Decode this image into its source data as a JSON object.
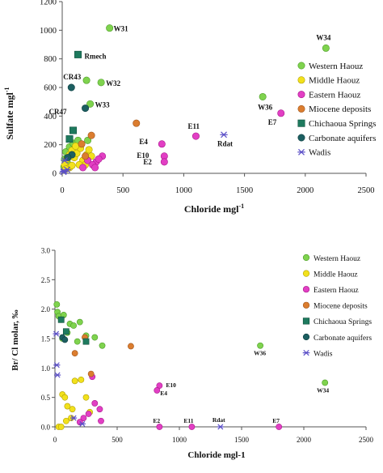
{
  "chart_data": [
    {
      "type": "scatter",
      "xlabel": "Chloride mgl",
      "xlabel_sup": "-1",
      "ylabel": "Sulfate  mgl",
      "ylabel_sup": "-1",
      "xlim": [
        0,
        2500
      ],
      "ylim": [
        0,
        1200
      ],
      "xticks": [
        0,
        500,
        1000,
        1500,
        2000,
        2500
      ],
      "yticks": [
        0,
        200,
        400,
        600,
        800,
        1000,
        1200
      ],
      "legend_position": "right",
      "series": [
        {
          "name": "Western Haouz",
          "marker": "circle",
          "color": "#7fd34e",
          "stroke": "#4a9a25",
          "points": [
            [
              390,
              1015
            ],
            [
              2170,
              875
            ],
            [
              1650,
              535
            ],
            [
              200,
              650
            ],
            [
              320,
              635
            ],
            [
              230,
              485
            ],
            [
              20,
              100
            ],
            [
              30,
              150
            ],
            [
              60,
              185
            ],
            [
              90,
              210
            ],
            [
              130,
              230
            ],
            [
              40,
              80
            ],
            [
              70,
              120
            ],
            [
              210,
              230
            ],
            [
              15,
              45
            ]
          ]
        },
        {
          "name": "Middle Haouz",
          "marker": "circle",
          "color": "#f2e11c",
          "stroke": "#b19f00",
          "points": [
            [
              20,
              60
            ],
            [
              40,
              100
            ],
            [
              60,
              130
            ],
            [
              80,
              160
            ],
            [
              100,
              110
            ],
            [
              120,
              140
            ],
            [
              150,
              175
            ],
            [
              170,
              90
            ],
            [
              190,
              60
            ],
            [
              200,
              130
            ],
            [
              220,
              165
            ],
            [
              110,
              190
            ],
            [
              140,
              60
            ],
            [
              60,
              40
            ],
            [
              240,
              120
            ],
            [
              80,
              55
            ],
            [
              30,
              30
            ]
          ]
        },
        {
          "name": "Eastern Haouz",
          "marker": "circle",
          "color": "#e23fc4",
          "stroke": "#a8168b",
          "points": [
            [
              1800,
              420
            ],
            [
              1100,
              260
            ],
            [
              820,
              205
            ],
            [
              840,
              120
            ],
            [
              840,
              80
            ],
            [
              280,
              80
            ],
            [
              330,
              120
            ],
            [
              210,
              90
            ],
            [
              250,
              60
            ],
            [
              170,
              40
            ],
            [
              270,
              40
            ],
            [
              300,
              100
            ]
          ]
        },
        {
          "name": "Miocene deposits",
          "marker": "circle",
          "color": "#db7d2f",
          "stroke": "#a0541a",
          "points": [
            [
              610,
              350
            ],
            [
              240,
              265
            ],
            [
              160,
              205
            ],
            [
              190,
              120
            ]
          ]
        },
        {
          "name": "Chichaoua Springs",
          "marker": "square",
          "color": "#1e7a5e",
          "stroke": "#0f4f3c",
          "points": [
            [
              130,
              830
            ],
            [
              90,
              300
            ],
            [
              60,
              240
            ]
          ]
        },
        {
          "name": "Carbonate aquifers",
          "marker": "circle",
          "color": "#1c5f61",
          "stroke": "#0e3d3f",
          "points": [
            [
              75,
              600
            ],
            [
              190,
              455
            ],
            [
              80,
              130
            ],
            [
              45,
              110
            ]
          ]
        },
        {
          "name": "Wadis",
          "marker": "star",
          "color": "#5b4fc7",
          "stroke": "#3a30a0",
          "points": [
            [
              1330,
              270
            ],
            [
              10,
              10
            ],
            [
              40,
              25
            ],
            [
              20,
              90
            ],
            [
              15,
              15
            ]
          ]
        }
      ],
      "annotations": [
        {
          "text": "W31",
          "x": 390,
          "y": 1015,
          "dx": 5,
          "dy": 4
        },
        {
          "text": "W34",
          "x": 2170,
          "y": 875,
          "dx": -12,
          "dy": -10
        },
        {
          "text": "Rmech",
          "x": 130,
          "y": 830,
          "dx": 8,
          "dy": 5
        },
        {
          "text": "CR43",
          "x": 75,
          "y": 600,
          "dx": -10,
          "dy": -10
        },
        {
          "text": "W32",
          "x": 320,
          "y": 635,
          "dx": 6,
          "dy": 4
        },
        {
          "text": "W36",
          "x": 1650,
          "y": 535,
          "dx": -6,
          "dy": 16
        },
        {
          "text": "W33",
          "x": 230,
          "y": 485,
          "dx": 6,
          "dy": 4
        },
        {
          "text": "E7",
          "x": 1800,
          "y": 420,
          "dx": -16,
          "dy": 14
        },
        {
          "text": "CR47",
          "x": 90,
          "y": 300,
          "dx": -30,
          "dy": -20
        },
        {
          "text": "E11",
          "x": 1100,
          "y": 260,
          "dx": -10,
          "dy": -9
        },
        {
          "text": "Rdat",
          "x": 1330,
          "y": 270,
          "dx": -8,
          "dy": 14
        },
        {
          "text": "E4",
          "x": 820,
          "y": 205,
          "dx": -28,
          "dy": 0
        },
        {
          "text": "E10",
          "x": 840,
          "y": 120,
          "dx": -34,
          "dy": 2
        },
        {
          "text": "E2",
          "x": 840,
          "y": 80,
          "dx": -26,
          "dy": 3
        }
      ]
    },
    {
      "type": "scatter",
      "xlabel": "Chloride mgl-1",
      "ylabel": "Br/ Cl molar, ‰",
      "xlim": [
        0,
        2500
      ],
      "ylim": [
        0,
        3.0
      ],
      "xticks": [
        0,
        500,
        1000,
        1500,
        2000,
        2500
      ],
      "yticks": [
        0.0,
        0.5,
        1.0,
        1.5,
        2.0,
        2.5,
        3.0
      ],
      "ytick_labels": [
        "0.0",
        "0.5",
        "1.0",
        "1.5",
        "2.0",
        "2.5",
        "3.0"
      ],
      "legend_position": "right",
      "series": [
        {
          "name": "Western Haouz",
          "marker": "circle",
          "color": "#7fd34e",
          "stroke": "#4a9a25",
          "points": [
            [
              15,
              2.08
            ],
            [
              20,
              1.95
            ],
            [
              30,
              1.88
            ],
            [
              50,
              1.82
            ],
            [
              70,
              1.9
            ],
            [
              100,
              1.6
            ],
            [
              120,
              1.75
            ],
            [
              150,
              1.72
            ],
            [
              200,
              1.78
            ],
            [
              250,
              1.55
            ],
            [
              320,
              1.52
            ],
            [
              380,
              1.38
            ],
            [
              1650,
              1.38
            ],
            [
              2170,
              0.75
            ],
            [
              180,
              1.45
            ],
            [
              60,
              1.5
            ]
          ]
        },
        {
          "name": "Middle Haouz",
          "marker": "circle",
          "color": "#f2e11c",
          "stroke": "#b19f00",
          "points": [
            [
              30,
              0.0
            ],
            [
              50,
              0.0
            ],
            [
              60,
              0.55
            ],
            [
              80,
              0.5
            ],
            [
              100,
              0.35
            ],
            [
              130,
              0.15
            ],
            [
              160,
              0.78
            ],
            [
              210,
              0.8
            ],
            [
              250,
              0.5
            ],
            [
              280,
              0.25
            ],
            [
              140,
              0.3
            ],
            [
              90,
              0.1
            ]
          ]
        },
        {
          "name": "Eastern Haouz",
          "marker": "circle",
          "color": "#e23fc4",
          "stroke": "#a8168b",
          "points": [
            [
              840,
              0.7
            ],
            [
              820,
              0.62
            ],
            [
              840,
              0.0
            ],
            [
              1100,
              0.0
            ],
            [
              1800,
              0.0
            ],
            [
              300,
              0.85
            ],
            [
              320,
              0.4
            ],
            [
              360,
              0.3
            ],
            [
              230,
              0.15
            ],
            [
              370,
              0.1
            ],
            [
              200,
              0.08
            ],
            [
              270,
              0.22
            ]
          ]
        },
        {
          "name": "Miocene deposits",
          "marker": "circle",
          "color": "#db7d2f",
          "stroke": "#a0541a",
          "points": [
            [
              610,
              1.37
            ],
            [
              240,
              1.52
            ],
            [
              290,
              0.9
            ],
            [
              160,
              1.25
            ]
          ]
        },
        {
          "name": "Chichaoua Springs",
          "marker": "square",
          "color": "#1e7a5e",
          "stroke": "#0f4f3c",
          "points": [
            [
              50,
              1.82
            ],
            [
              90,
              1.62
            ],
            [
              250,
              1.45
            ]
          ]
        },
        {
          "name": "Carbonate aquifers",
          "marker": "circle",
          "color": "#1c5f61",
          "stroke": "#0e3d3f",
          "points": [
            [
              60,
              1.52
            ],
            [
              80,
              1.48
            ]
          ]
        },
        {
          "name": "Wadis",
          "marker": "star",
          "color": "#5b4fc7",
          "stroke": "#3a30a0",
          "points": [
            [
              10,
              1.58
            ],
            [
              15,
              1.05
            ],
            [
              20,
              0.88
            ],
            [
              150,
              0.15
            ],
            [
              220,
              0.05
            ],
            [
              1330,
              0.0
            ]
          ]
        }
      ],
      "annotations": [
        {
          "text": "W36",
          "x": 1650,
          "y": 1.38,
          "dx": -8,
          "dy": 12
        },
        {
          "text": "W34",
          "x": 2170,
          "y": 0.75,
          "dx": -10,
          "dy": 12
        },
        {
          "text": "E10",
          "x": 840,
          "y": 0.7,
          "dx": 8,
          "dy": 2
        },
        {
          "text": "E4",
          "x": 820,
          "y": 0.62,
          "dx": 4,
          "dy": 6
        },
        {
          "text": "E2",
          "x": 840,
          "y": 0.0,
          "dx": -8,
          "dy": -5
        },
        {
          "text": "E11",
          "x": 1100,
          "y": 0.0,
          "dx": -10,
          "dy": -5
        },
        {
          "text": "Rdat",
          "x": 1330,
          "y": 0.0,
          "dx": -10,
          "dy": -6
        },
        {
          "text": "E7",
          "x": 1800,
          "y": 0.0,
          "dx": -8,
          "dy": -5
        }
      ]
    }
  ]
}
